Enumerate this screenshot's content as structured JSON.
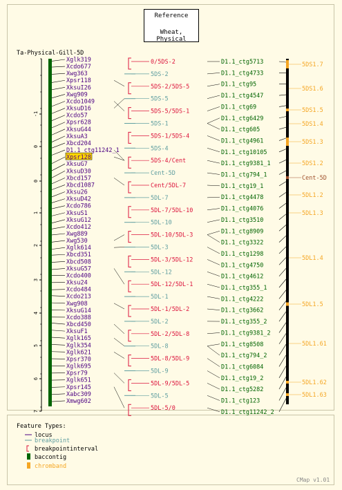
{
  "reference": {
    "line1": "Reference",
    "line2": "Wheat, Physical"
  },
  "map_title": "Ta-Physical-Gill-5D",
  "version": "CMap v1.01",
  "axis_ticks": [
    "-1",
    "0",
    "0",
    "1",
    "2",
    "3",
    "4",
    "5",
    "6",
    "7"
  ],
  "colors": {
    "locus": "#4b0082",
    "breakpoint": "#5f9ea0",
    "interval": "#dc143c",
    "baccontig": "#006400",
    "chromband": "#f5a623",
    "centromere": "#a0522d",
    "highlight": "#ffd700"
  },
  "loci": [
    "Xglk319",
    "Xcdo677",
    "Xwg363",
    "Xpsr118",
    "XksuI26",
    "Xwg909",
    "Xcdo1049",
    "XksuD16",
    "Xcdo57",
    "Xpsr628",
    "XksuG44",
    "XksuA3",
    "Xbcd204",
    "D1.1_ctg11242_1",
    "Xpsr128",
    "XksuG7",
    "XksuD30",
    "Xbcd157",
    "Xbcd1087",
    "Xksu26",
    "XksuD42",
    "Xcdo786",
    "XksuS1",
    "XksuG12",
    "Xcdo412",
    "Xwg889",
    "Xwg530",
    "Xglk614",
    "Xbcd351",
    "Xbcd508",
    "XksuG57",
    "Xcdo400",
    "Xksu24",
    "Xcdo484",
    "Xcdo213",
    "Xwg908",
    "XksuG14",
    "Xcdo388",
    "Xbcd450",
    "XksuF1",
    "Xglk165",
    "Xglk354",
    "Xglk621",
    "Xpsr370",
    "Xglk695",
    "Xpsr79",
    "Xglk651",
    "Xpsr145",
    "Xabc309",
    "Xmwg602"
  ],
  "highlighted_locus": "Xpsr128",
  "bins": [
    {
      "label": "0/5DS-2",
      "type": "interval"
    },
    {
      "label": "5DS-2",
      "type": "breakpoint"
    },
    {
      "label": "5DS-2/5DS-5",
      "type": "interval"
    },
    {
      "label": "5DS-5",
      "type": "breakpoint"
    },
    {
      "label": "5DS-5/5DS-1",
      "type": "interval"
    },
    {
      "label": "5DS-1",
      "type": "breakpoint"
    },
    {
      "label": "5DS-1/5DS-4",
      "type": "interval"
    },
    {
      "label": "5DS-4",
      "type": "breakpoint"
    },
    {
      "label": "5DS-4/Cent",
      "type": "interval"
    },
    {
      "label": "Cent-5D",
      "type": "breakpoint"
    },
    {
      "label": "Cent/5DL-7",
      "type": "interval"
    },
    {
      "label": "5DL-7",
      "type": "breakpoint"
    },
    {
      "label": "5DL-7/5DL-10",
      "type": "interval"
    },
    {
      "label": "5DL-10",
      "type": "breakpoint"
    },
    {
      "label": "5DL-10/5DL-3",
      "type": "interval"
    },
    {
      "label": "5DL-3",
      "type": "breakpoint"
    },
    {
      "label": "5DL-3/5DL-12",
      "type": "interval"
    },
    {
      "label": "5DL-12",
      "type": "breakpoint"
    },
    {
      "label": "5DL-12/5DL-1",
      "type": "interval"
    },
    {
      "label": "5DL-1",
      "type": "breakpoint"
    },
    {
      "label": "5DL-1/5DL-2",
      "type": "interval"
    },
    {
      "label": "5DL-2",
      "type": "breakpoint"
    },
    {
      "label": "5DL-2/5DL-8",
      "type": "interval"
    },
    {
      "label": "5DL-8",
      "type": "breakpoint"
    },
    {
      "label": "5DL-8/5DL-9",
      "type": "interval"
    },
    {
      "label": "5DL-9",
      "type": "breakpoint"
    },
    {
      "label": "5DL-9/5DL-5",
      "type": "interval"
    },
    {
      "label": "5DL-5",
      "type": "breakpoint"
    },
    {
      "label": "5DL-5/0",
      "type": "interval"
    }
  ],
  "contigs": [
    "D1.1_ctg5713",
    "D1.1_ctg4733",
    "D1.1_ctg95",
    "D1.1_ctg4547",
    "D1.1_ctg69",
    "D1.1_ctg6429",
    "D1.1_ctg605",
    "D1.1_ctg4961",
    "D1.1_ctg10105",
    "D1.1_ctg9381_1",
    "D1.1_ctg794_1",
    "D1.1_ctg19_1",
    "D1.1_ctg4478",
    "D1.1_ctg4076",
    "D1.1_ctg3510",
    "D1.1_ctg8909",
    "D1.1_ctg3322",
    "D1.1_ctg1298",
    "D1.1_ctg4750",
    "D1.1_ctg4612",
    "D1.1_ctg355_1",
    "D1.1_ctg4222",
    "D1.1_ctg3662",
    "D1.1_ctg355_2",
    "D1.1_ctg9381_2",
    "D1.1_ctg8508",
    "D1.1_ctg794_2",
    "D1.1_ctg6084",
    "D1.1_ctg19_2",
    "D1.1_ctg5282",
    "D1.1_ctg123",
    "D1.1_ctg11242_2"
  ],
  "bands": [
    "5DS1.7",
    "5DS1.6",
    "5DS1.5",
    "5DS1.4",
    "5DS1.3",
    "5DS1.2",
    "Cent-5D",
    "5DL1.2",
    "5DL1.3",
    "5DL1.4",
    "5DL1.5",
    "5DL1.61",
    "5DL1.62",
    "5DL1.63"
  ],
  "legend": {
    "title": "Feature Types:",
    "items": [
      {
        "label": "locus",
        "type": "locus"
      },
      {
        "label": "breakpoint",
        "type": "breakpoint"
      },
      {
        "label": "breakpointinterval",
        "type": "interval"
      },
      {
        "label": "baccontig",
        "type": "baccontig"
      },
      {
        "label": "chromband",
        "type": "chromband"
      }
    ]
  }
}
